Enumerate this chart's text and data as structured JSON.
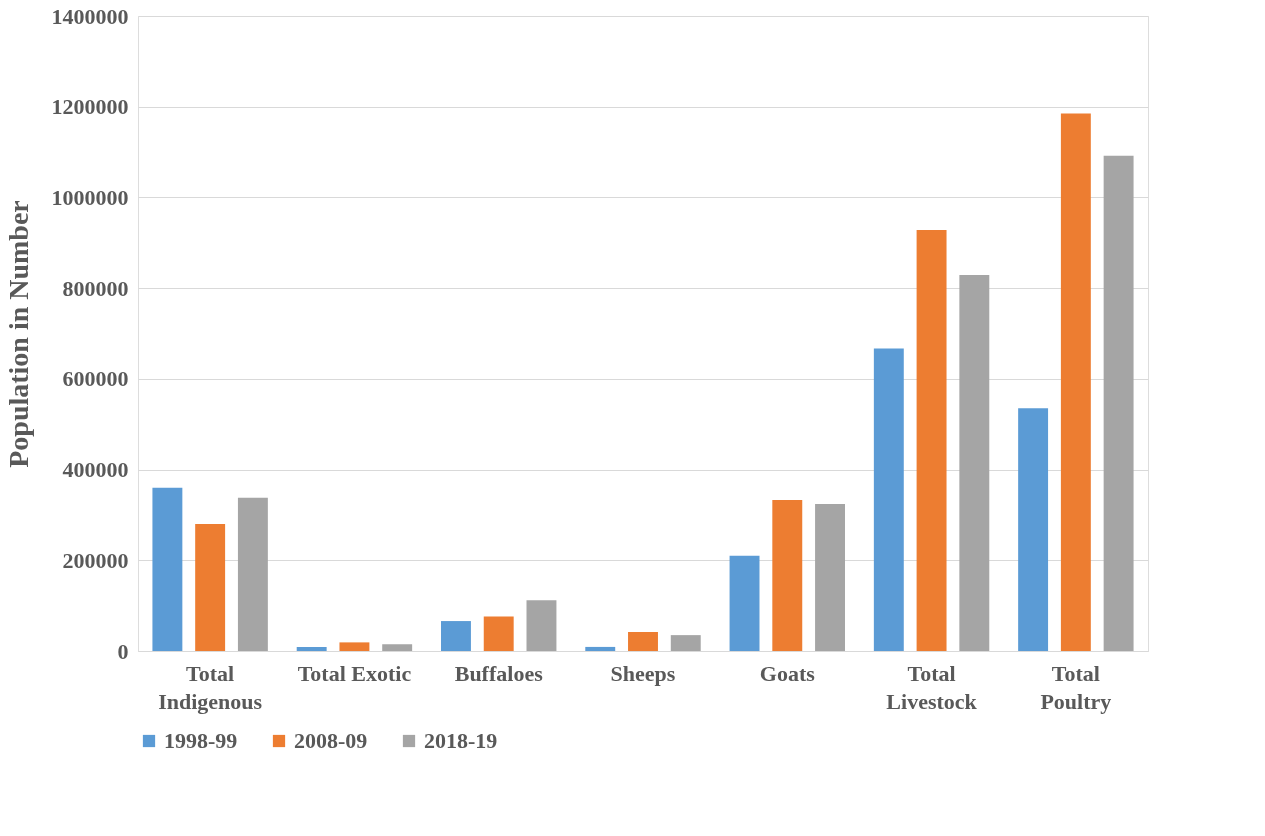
{
  "chart_data": {
    "type": "bar",
    "ylabel": "Population in Number",
    "categories": [
      "Total Indigenous",
      "Total Exotic",
      "Buffaloes",
      "Sheeps",
      "Goats",
      "Total Livestock",
      "Total Poultry"
    ],
    "series": [
      {
        "name": "1998-99",
        "color": "#5b9bd5",
        "values": [
          360000,
          9000,
          66000,
          9000,
          210000,
          667000,
          535000
        ]
      },
      {
        "name": "2008-09",
        "color": "#ed7d31",
        "values": [
          280000,
          19000,
          76000,
          42000,
          333000,
          928000,
          1185000
        ]
      },
      {
        "name": "2018-19",
        "color": "#a5a5a5",
        "values": [
          338000,
          15000,
          112000,
          35000,
          324000,
          829000,
          1092000
        ]
      }
    ],
    "ylim": [
      0,
      1400000
    ],
    "yticks": [
      0,
      200000,
      400000,
      600000,
      800000,
      1000000,
      1200000,
      1400000
    ],
    "grid": "y",
    "legend": "bottom"
  }
}
